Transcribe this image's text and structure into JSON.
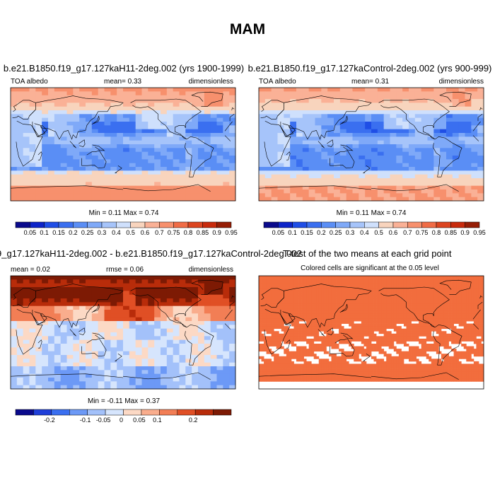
{
  "title": "MAM",
  "palettes": {
    "albedo": [
      "#0a0a8c",
      "#0d24c8",
      "#1f4ee6",
      "#3a6ff0",
      "#5a8ef5",
      "#7fa9f8",
      "#a6c4fa",
      "#cfe0fc",
      "#f8d4bd",
      "#fab196",
      "#f7906d",
      "#f06c46",
      "#dc4520",
      "#c82a0c",
      "#961e06"
    ],
    "diff": [
      "#0a0a8c",
      "#1f3fd9",
      "#3a6ff0",
      "#6c99f6",
      "#a3c1fa",
      "#d6e5fd",
      "#fcd9c5",
      "#f9ad8d",
      "#f27e55",
      "#e04f25",
      "#b82c0a",
      "#7d1a04"
    ],
    "sig_fill": "#f26d3d"
  },
  "chart_data": [
    {
      "type": "heatmap",
      "panel": "top-left",
      "title": "b.e21.B1850.f19_g17.127kaH11-2deg.002 (yrs 1900-1999)",
      "left_label": "TOA albedo",
      "center_label": "mean=  0.33",
      "right_label": "dimensionless",
      "stats": "Min =  0.11 Max =  0.74",
      "colorbar_ticks": [
        "0.05",
        "0.1",
        "0.15",
        "0.2",
        "0.25",
        "0.3",
        "0.4",
        "0.5",
        "0.6",
        "0.7",
        "0.75",
        "0.8",
        "0.85",
        "0.9",
        "0.95"
      ],
      "min": 0.11,
      "max": 0.74,
      "mean": 0.33
    },
    {
      "type": "heatmap",
      "panel": "top-right",
      "title": "b.e21.B1850.f19_g17.127kaControl-2deg.002 (yrs 900-999)",
      "left_label": "TOA albedo",
      "center_label": "mean=  0.31",
      "right_label": "dimensionless",
      "stats": "Min =  0.11 Max =  0.74",
      "colorbar_ticks": [
        "0.05",
        "0.1",
        "0.15",
        "0.2",
        "0.25",
        "0.3",
        "0.4",
        "0.5",
        "0.6",
        "0.7",
        "0.75",
        "0.8",
        "0.85",
        "0.9",
        "0.95"
      ],
      "min": 0.11,
      "max": 0.74,
      "mean": 0.31
    },
    {
      "type": "heatmap",
      "panel": "bottom-left",
      "title": "9_g17.127kaH11-2deg.002 - b.e21.B1850.f19_g17.127kaControl-2deg.002",
      "left_label": "mean =  0.02",
      "center_label": "rmse =  0.06",
      "right_label": "dimensionless",
      "stats": "Min =  -0.11 Max =  0.37",
      "colorbar_ticks": [
        "-0.2",
        "-0.1",
        "-0.05",
        "0",
        "0.05",
        "0.1",
        "0.2"
      ],
      "min": -0.11,
      "max": 0.37,
      "mean": 0.02,
      "rmse": 0.06
    },
    {
      "type": "heatmap",
      "panel": "bottom-right",
      "title": "T-test of the two means at each grid point",
      "subtitle": "Colored cells are significant at the 0.05 level"
    }
  ]
}
